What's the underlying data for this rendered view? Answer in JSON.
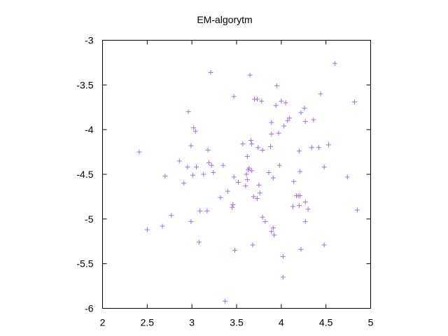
{
  "chart_data": {
    "type": "scatter",
    "title": "EM-algorytm",
    "xlabel": "",
    "ylabel": "",
    "xlim": [
      2,
      5
    ],
    "ylim": [
      -6,
      -3
    ],
    "x_ticks": [
      "2",
      "2.5",
      "3",
      "3.5",
      "4",
      "4.5",
      "5"
    ],
    "y_ticks": [
      "-3",
      "-3.5",
      "-4",
      "-4.5",
      "-5",
      "-5.5",
      "-6"
    ],
    "grid": false,
    "marker": "plus",
    "color": "#a66fdc",
    "series": [
      {
        "points": [
          [
            2.41,
            -4.25
          ],
          [
            2.5,
            -5.12
          ],
          [
            2.67,
            -5.08
          ],
          [
            2.7,
            -4.52
          ],
          [
            2.77,
            -4.96
          ],
          [
            2.86,
            -4.35
          ],
          [
            2.91,
            -4.6
          ],
          [
            2.95,
            -4.42
          ],
          [
            2.96,
            -3.8
          ],
          [
            2.99,
            -5.03
          ],
          [
            2.99,
            -4.18
          ],
          [
            3.01,
            -4.51
          ],
          [
            3.02,
            -3.98
          ],
          [
            3.04,
            -4.02
          ],
          [
            3.05,
            -4.42
          ],
          [
            3.08,
            -5.26
          ],
          [
            3.09,
            -4.91
          ],
          [
            3.13,
            -4.5
          ],
          [
            3.17,
            -4.91
          ],
          [
            3.18,
            -4.23
          ],
          [
            3.19,
            -4.37
          ],
          [
            3.21,
            -3.36
          ],
          [
            3.22,
            -4.4
          ],
          [
            3.24,
            -4.48
          ],
          [
            3.32,
            -4.76
          ],
          [
            3.35,
            -4.4
          ],
          [
            3.37,
            -5.92
          ],
          [
            3.4,
            -4.69
          ],
          [
            3.45,
            -4.87
          ],
          [
            3.46,
            -4.84
          ],
          [
            3.47,
            -4.53
          ],
          [
            3.47,
            -3.63
          ],
          [
            3.48,
            -5.35
          ],
          [
            3.52,
            -4.59
          ],
          [
            3.57,
            -4.16
          ],
          [
            3.6,
            -4.63
          ],
          [
            3.61,
            -4.5
          ],
          [
            3.62,
            -4.56
          ],
          [
            3.62,
            -4.3
          ],
          [
            3.63,
            -4.45
          ],
          [
            3.64,
            -4.43
          ],
          [
            3.65,
            -3.39
          ],
          [
            3.66,
            -4.12
          ],
          [
            3.67,
            -4.16
          ],
          [
            3.67,
            -4.46
          ],
          [
            3.68,
            -5.29
          ],
          [
            3.69,
            -4.75
          ],
          [
            3.7,
            -3.66
          ],
          [
            3.73,
            -4.77
          ],
          [
            3.73,
            -3.66
          ],
          [
            3.74,
            -4.2
          ],
          [
            3.75,
            -4.62
          ],
          [
            3.76,
            -4.71
          ],
          [
            3.78,
            -3.68
          ],
          [
            3.79,
            -4.98
          ],
          [
            3.79,
            -4.23
          ],
          [
            3.82,
            -5.03
          ],
          [
            3.86,
            -4.48
          ],
          [
            3.88,
            -4.19
          ],
          [
            3.89,
            -5.14
          ],
          [
            3.89,
            -3.92
          ],
          [
            3.89,
            -4.05
          ],
          [
            3.91,
            -5.1
          ],
          [
            3.91,
            -4.54
          ],
          [
            3.92,
            -5.18
          ],
          [
            3.94,
            -3.73
          ],
          [
            3.95,
            -3.51
          ],
          [
            3.97,
            -4.04
          ],
          [
            3.98,
            -4.4
          ],
          [
            4.0,
            -3.68
          ],
          [
            4.02,
            -5.42
          ],
          [
            4.02,
            -5.65
          ],
          [
            4.03,
            -3.96
          ],
          [
            4.05,
            -3.7
          ],
          [
            4.07,
            -3.9
          ],
          [
            4.09,
            -3.87
          ],
          [
            4.13,
            -4.86
          ],
          [
            4.14,
            -4.58
          ],
          [
            4.17,
            -4.74
          ],
          [
            4.19,
            -4.74
          ],
          [
            4.2,
            -4.85
          ],
          [
            4.2,
            -4.24
          ],
          [
            4.21,
            -4.74
          ],
          [
            4.21,
            -4.47
          ],
          [
            4.22,
            -5.34
          ],
          [
            4.22,
            -3.81
          ],
          [
            4.26,
            -3.76
          ],
          [
            4.27,
            -5.03
          ],
          [
            4.27,
            -4.81
          ],
          [
            4.27,
            -3.91
          ],
          [
            4.3,
            -4.89
          ],
          [
            4.34,
            -4.2
          ],
          [
            4.36,
            -3.89
          ],
          [
            4.42,
            -4.2
          ],
          [
            4.44,
            -3.6
          ],
          [
            4.48,
            -4.42
          ],
          [
            4.48,
            -5.29
          ],
          [
            4.53,
            -4.17
          ],
          [
            4.6,
            -3.26
          ],
          [
            4.74,
            -4.53
          ],
          [
            4.82,
            -3.69
          ],
          [
            4.85,
            -4.9
          ]
        ]
      }
    ]
  }
}
